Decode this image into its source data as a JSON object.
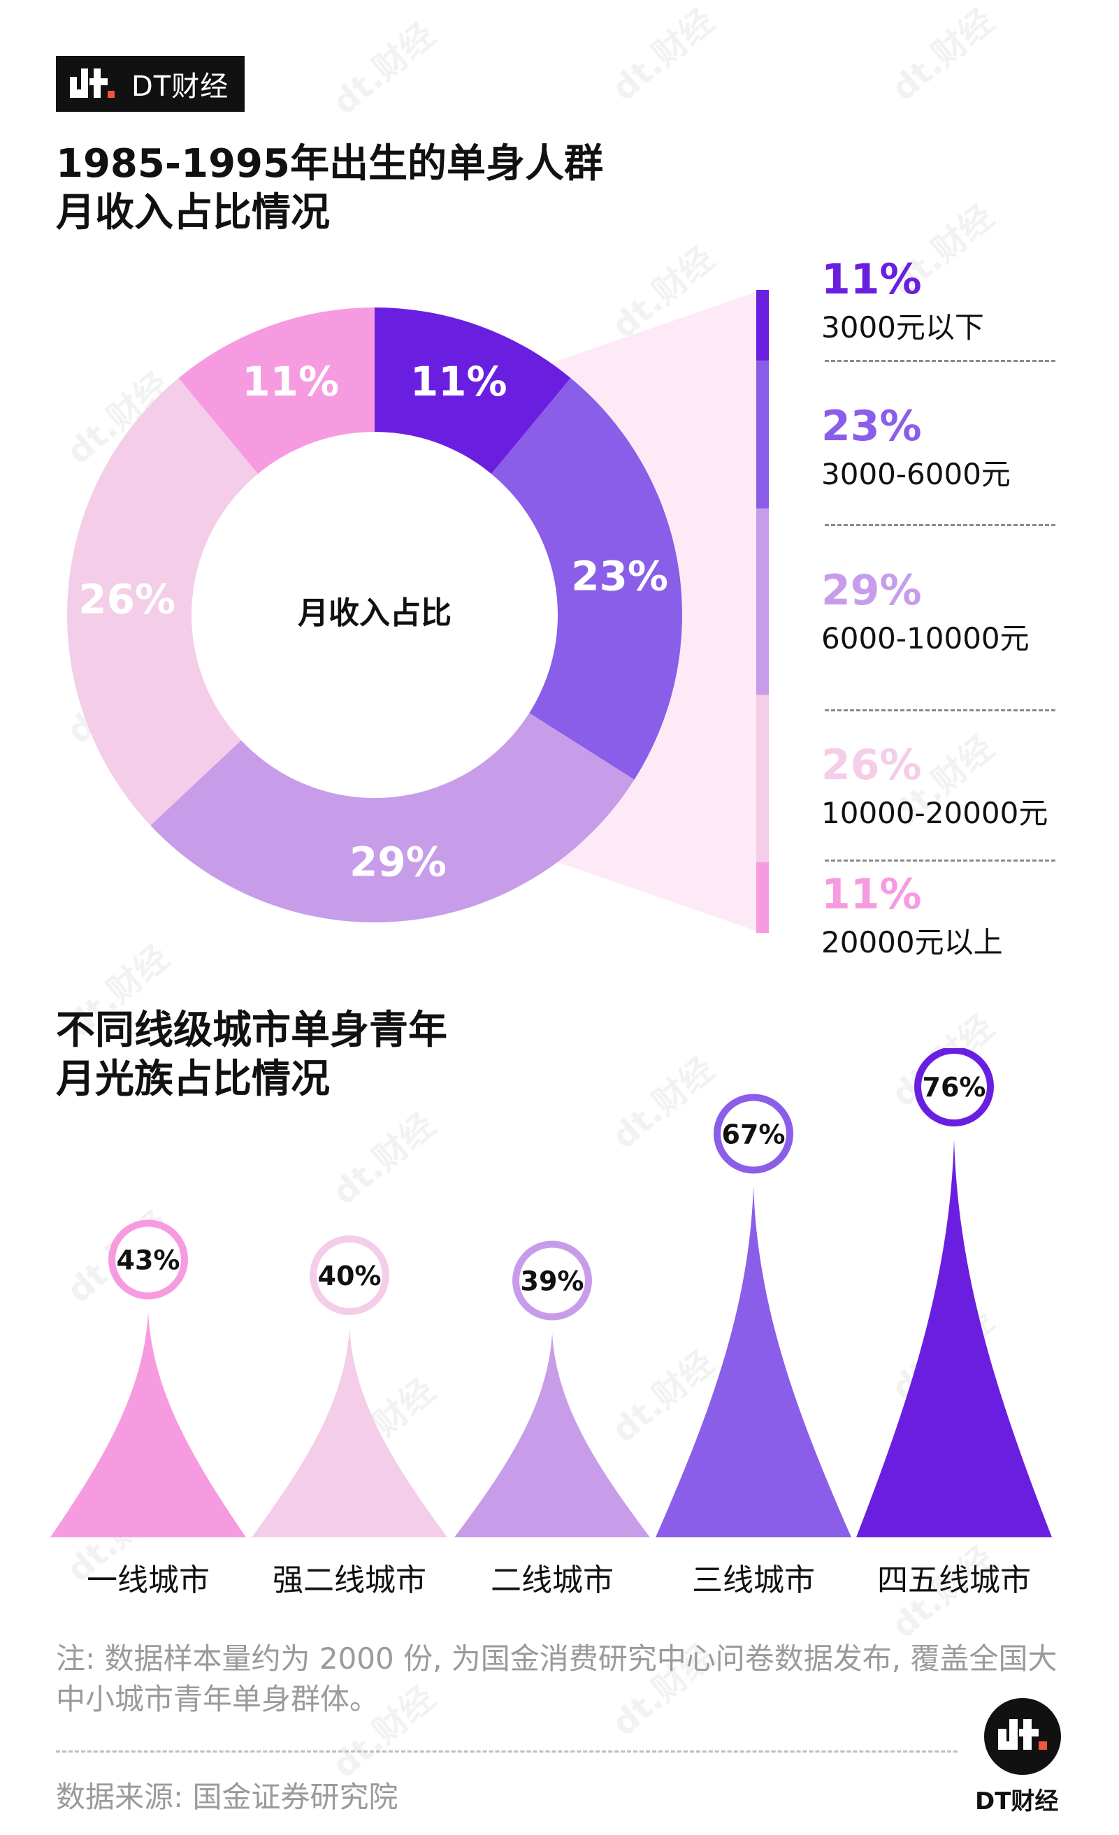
{
  "brand": {
    "name": "DT财经",
    "mark": "dt"
  },
  "chart1_title": [
    "1985-1995年出生的单身人群",
    "月收入占比情况"
  ],
  "chart2_title": [
    "不同线级城市单身青年",
    "月光族占比情况"
  ],
  "watermark": "dt.财经",
  "colors": {
    "deep_violet": "#6a1fe0",
    "violet": "#8a5ee8",
    "lavender": "#c79dea",
    "light_pink": "#f4cde8",
    "pink": "#f79be0",
    "fan": "#fdeaf6"
  },
  "chart_data": [
    {
      "type": "pie",
      "title": "1985-1995年出生的单身人群月收入占比情况",
      "center_label": "月收入占比",
      "slices": [
        {
          "label": "3000元以下",
          "value": 11,
          "value_label": "11%",
          "color": "#6a1fe0"
        },
        {
          "label": "3000-6000元",
          "value": 23,
          "value_label": "23%",
          "color": "#8a5ee8"
        },
        {
          "label": "6000-10000元",
          "value": 29,
          "value_label": "29%",
          "color": "#c79dea"
        },
        {
          "label": "10000-20000元",
          "value": 26,
          "value_label": "26%",
          "color": "#f4cde8"
        },
        {
          "label": "20000元以上",
          "value": 11,
          "value_label": "11%",
          "color": "#f79be0"
        }
      ],
      "legend_placement": "right"
    },
    {
      "type": "bar",
      "title": "不同线级城市单身青年月光族占比情况",
      "categories": [
        "一线城市",
        "强二线城市",
        "二线城市",
        "三线城市",
        "四五线城市"
      ],
      "values": [
        43,
        40,
        39,
        67,
        76
      ],
      "value_labels": [
        "43%",
        "40%",
        "39%",
        "67%",
        "76%"
      ],
      "colors": [
        "#f79be0",
        "#f4cde8",
        "#c79dea",
        "#8a5ee8",
        "#6a1fe0"
      ],
      "ylim": [
        0,
        100
      ]
    }
  ],
  "note": "注: 数据样本量约为 2000 份, 为国金消费研究中心问卷数据发布, 覆盖全国大中小城市青年单身群体。",
  "source": "数据来源: 国金证券研究院"
}
